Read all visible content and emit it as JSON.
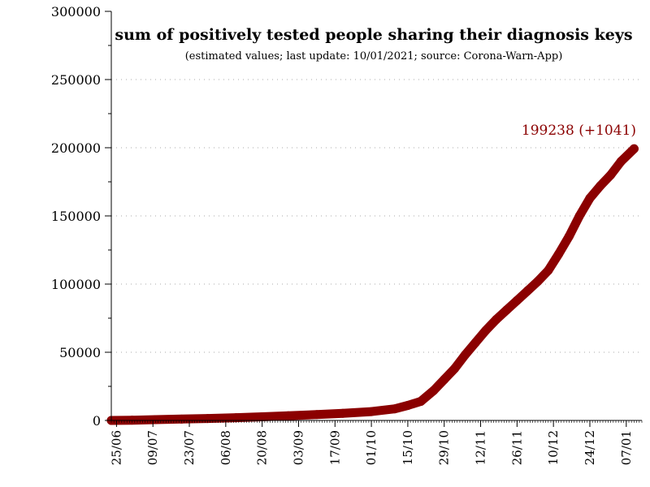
{
  "chart_data": {
    "type": "line",
    "title": "sum of positively tested people sharing their diagnosis keys",
    "subtitle": "(estimated values; last update: 10/01/2021; source: Corona-Warn-App)",
    "xlabel": "",
    "ylabel": "",
    "ylim": [
      0,
      300000
    ],
    "y_ticks": [
      "0",
      "50000",
      "100000",
      "150000",
      "200000",
      "250000",
      "300000"
    ],
    "x_tick_labels": [
      "25/06",
      "09/07",
      "23/07",
      "06/08",
      "20/08",
      "03/09",
      "17/09",
      "01/10",
      "15/10",
      "29/10",
      "12/11",
      "26/11",
      "10/12",
      "24/12",
      "07/01"
    ],
    "x_tick_dates": [
      "2020-06-25",
      "2020-07-09",
      "2020-07-23",
      "2020-08-06",
      "2020-08-20",
      "2020-09-03",
      "2020-09-17",
      "2020-10-01",
      "2020-10-15",
      "2020-10-29",
      "2020-11-12",
      "2020-11-26",
      "2020-12-10",
      "2020-12-24",
      "2021-01-07"
    ],
    "xlim": [
      "2020-06-23",
      "2021-01-13"
    ],
    "grid": "horizontal dotted",
    "marker_color": "#8b0000",
    "annotation": "199238 (+1041)",
    "series": [
      {
        "name": "",
        "points": [
          [
            "2020-06-23",
            0
          ],
          [
            "2020-07-01",
            200
          ],
          [
            "2020-07-10",
            600
          ],
          [
            "2020-07-20",
            1000
          ],
          [
            "2020-07-30",
            1400
          ],
          [
            "2020-08-10",
            2000
          ],
          [
            "2020-08-20",
            2700
          ],
          [
            "2020-08-30",
            3400
          ],
          [
            "2020-09-10",
            4300
          ],
          [
            "2020-09-20",
            5200
          ],
          [
            "2020-10-01",
            6500
          ],
          [
            "2020-10-10",
            8500
          ],
          [
            "2020-10-15",
            11000
          ],
          [
            "2020-10-20",
            14000
          ],
          [
            "2020-10-25",
            22000
          ],
          [
            "2020-10-29",
            30000
          ],
          [
            "2020-11-02",
            38000
          ],
          [
            "2020-11-06",
            48000
          ],
          [
            "2020-11-10",
            57000
          ],
          [
            "2020-11-14",
            66000
          ],
          [
            "2020-11-18",
            74000
          ],
          [
            "2020-11-22",
            81000
          ],
          [
            "2020-11-26",
            88000
          ],
          [
            "2020-11-30",
            95000
          ],
          [
            "2020-12-04",
            102000
          ],
          [
            "2020-12-08",
            110000
          ],
          [
            "2020-12-12",
            122000
          ],
          [
            "2020-12-16",
            135000
          ],
          [
            "2020-12-20",
            150000
          ],
          [
            "2020-12-24",
            163000
          ],
          [
            "2020-12-28",
            172000
          ],
          [
            "2021-01-01",
            180000
          ],
          [
            "2021-01-05",
            190000
          ],
          [
            "2021-01-10",
            199238
          ]
        ]
      }
    ]
  }
}
